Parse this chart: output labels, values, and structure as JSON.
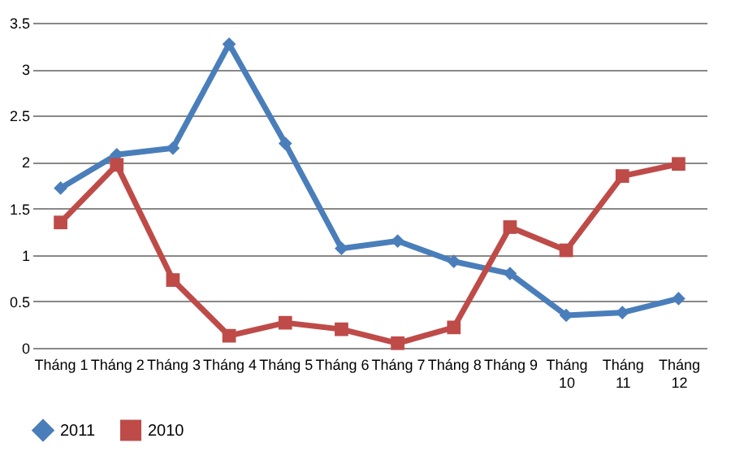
{
  "chart_data": {
    "type": "line",
    "categories": [
      "Tháng 1",
      "Tháng 2",
      "Tháng 3",
      "Tháng 4",
      "Tháng 5",
      "Tháng 6",
      "Tháng 7",
      "Tháng 8",
      "Tháng 9",
      "Tháng 10",
      "Tháng 11",
      "Tháng 12"
    ],
    "series": [
      {
        "name": "2011",
        "color": "#4a7ebb",
        "marker": "diamond",
        "values": [
          1.72,
          2.08,
          2.15,
          3.27,
          2.2,
          1.07,
          1.15,
          0.93,
          0.8,
          0.35,
          0.38,
          0.53
        ]
      },
      {
        "name": "2010",
        "color": "#be4b48",
        "marker": "square",
        "values": [
          1.35,
          1.97,
          0.73,
          0.13,
          0.27,
          0.2,
          0.05,
          0.22,
          1.3,
          1.05,
          1.85,
          1.98
        ]
      }
    ],
    "ylim": [
      0,
      3.5
    ],
    "yticks": [
      0,
      0.5,
      1,
      1.5,
      2,
      2.5,
      3,
      3.5
    ],
    "grid": "y",
    "legend": "bottom",
    "line_style": "solid"
  }
}
